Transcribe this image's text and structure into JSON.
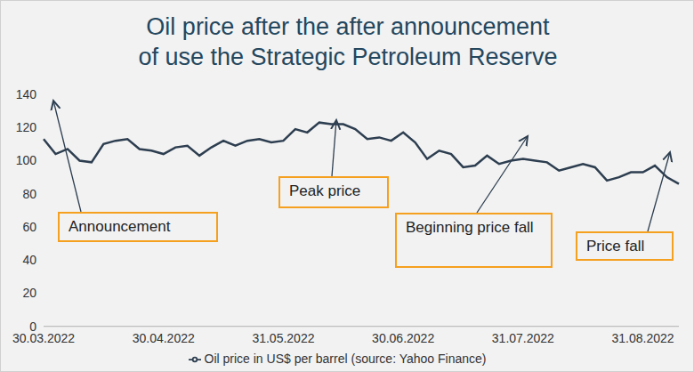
{
  "chart_data": {
    "type": "line",
    "title": "Oil price after the after announcement\nof use the Strategic Petroleum Reserve",
    "categories": [
      "30.03.2022",
      null,
      null,
      null,
      null,
      null,
      null,
      null,
      null,
      null,
      "30.04.2022",
      null,
      null,
      null,
      null,
      null,
      null,
      null,
      null,
      null,
      "31.05.2022",
      null,
      null,
      null,
      null,
      null,
      null,
      null,
      null,
      null,
      "30.06.2022",
      null,
      null,
      null,
      null,
      null,
      null,
      null,
      null,
      null,
      "31.07.2022",
      null,
      null,
      null,
      null,
      null,
      null,
      null,
      null,
      null,
      "31.08.2022",
      null,
      null,
      null
    ],
    "series": [
      {
        "name": "Oil price in US$ per barrel (source: Yahoo Finance)",
        "color": "#2d3e50",
        "values": [
          113,
          104,
          107,
          100,
          99,
          110,
          112,
          113,
          107,
          106,
          104,
          108,
          109,
          103,
          108,
          112,
          109,
          112,
          113,
          111,
          112,
          119,
          117,
          123,
          122,
          122,
          119,
          113,
          114,
          112,
          117,
          111,
          101,
          106,
          104,
          96,
          97,
          103,
          98,
          100,
          101,
          100,
          99,
          94,
          96,
          98,
          96,
          88,
          90,
          93,
          93,
          97,
          90,
          86
        ]
      }
    ],
    "ylim": [
      0,
      140
    ],
    "yticks": [
      0,
      20,
      40,
      60,
      80,
      100,
      120,
      140
    ],
    "grid": false,
    "legend": "bottom",
    "annotations": [
      "Announcement",
      "Peak price",
      "Beginning price fall",
      "Price fall"
    ]
  }
}
